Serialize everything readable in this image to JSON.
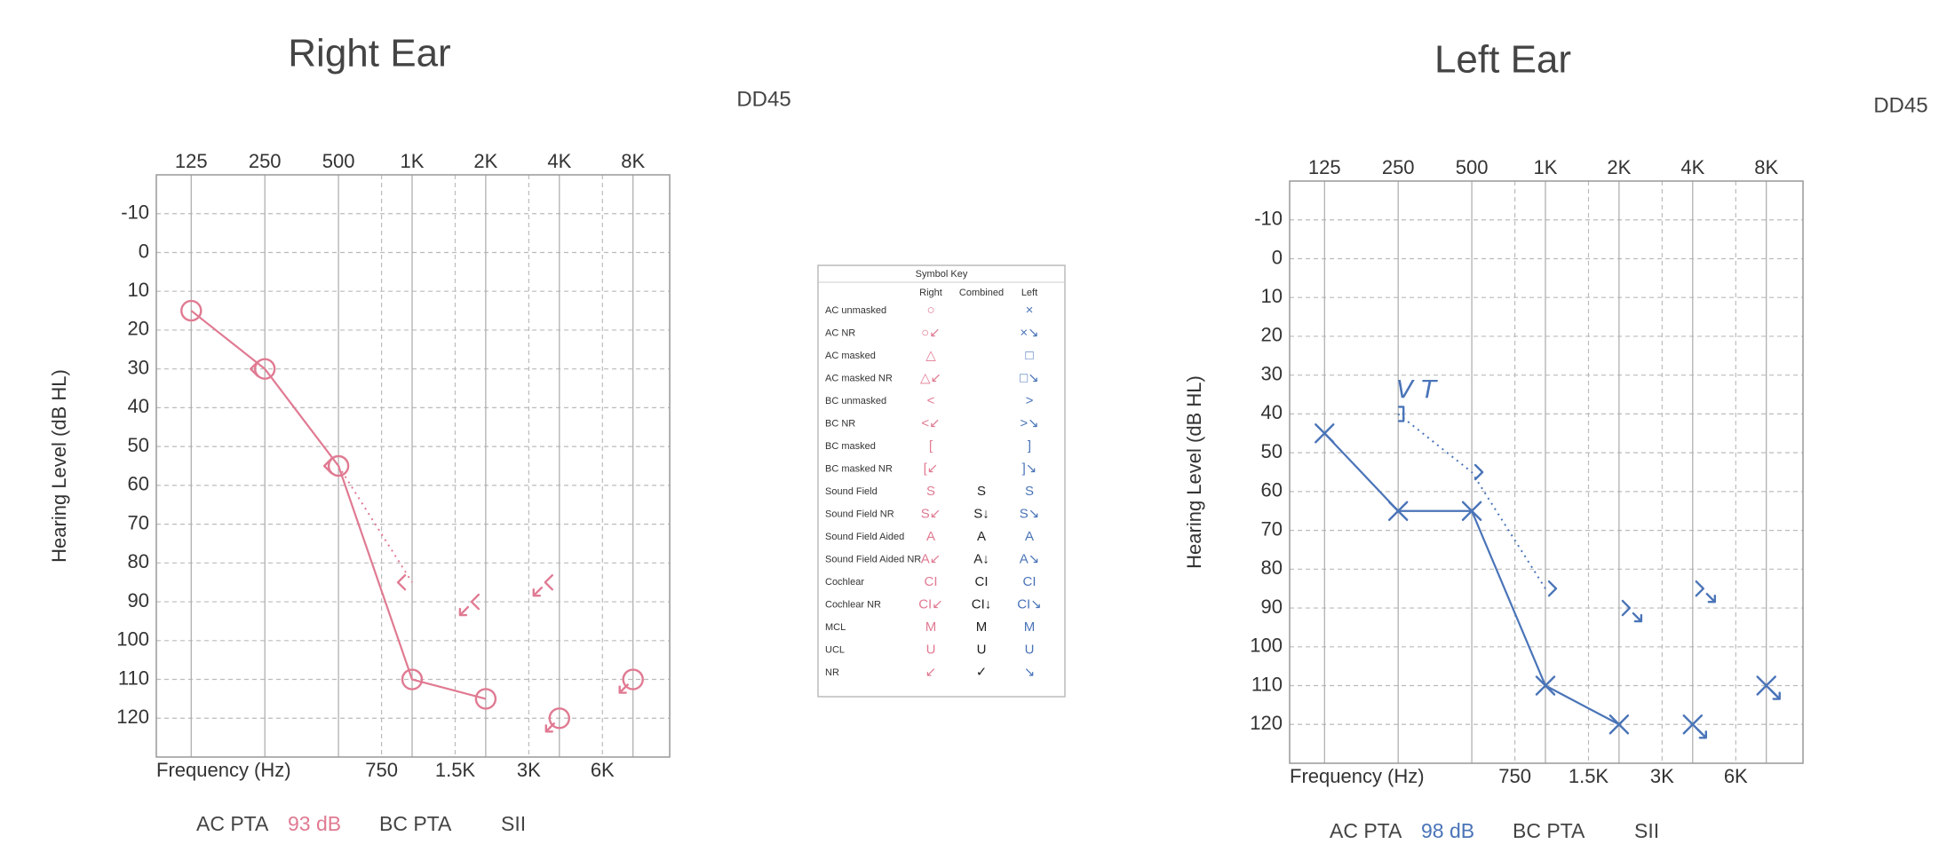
{
  "chart_data": [
    {
      "type": "audiogram",
      "title": "Right Ear",
      "transducer": "DD45",
      "xlabel": "Frequency (Hz)",
      "ylabel": "Hearing Level (dB HL)",
      "xscale": "log",
      "xlim": [
        90,
        11300
      ],
      "xticks": [
        125,
        250,
        500,
        {
          "value": 1000,
          "label": "1K"
        },
        {
          "value": 2000,
          "label": "2K"
        },
        {
          "value": 4000,
          "label": "4K"
        },
        {
          "value": 8000,
          "label": "8K"
        }
      ],
      "x2ticks": [
        750,
        {
          "value": 1500,
          "label": "1.5K"
        },
        {
          "value": 3000,
          "label": "3K"
        },
        {
          "value": 6000,
          "label": "6K"
        }
      ],
      "ylim": [
        -20,
        130
      ],
      "y_reversed": true,
      "yticks": [
        -10,
        0,
        10,
        20,
        30,
        40,
        50,
        60,
        70,
        80,
        90,
        100,
        110,
        120
      ],
      "grid": true,
      "series": [
        {
          "marker": "circle",
          "line": "solid",
          "color": "#e07a92",
          "x": [
            125,
            250,
            500,
            1000,
            2000
          ],
          "values": [
            15,
            30,
            55,
            110,
            115
          ]
        },
        {
          "marker": "circle-nr",
          "color": "#e07a92",
          "x": [
            4000,
            8000
          ],
          "values": [
            120,
            110
          ]
        },
        {
          "marker": "<",
          "color": "#e07a92",
          "x": [
            250
          ],
          "values": [
            30
          ]
        },
        {
          "marker": "<",
          "line": "dotted",
          "color": "#e07a92",
          "x": [
            500,
            1000
          ],
          "values": [
            55,
            85
          ]
        },
        {
          "marker": "<-nr",
          "color": "#e07a92",
          "x": [
            2000,
            4000
          ],
          "values": [
            90,
            85
          ]
        }
      ],
      "annotations": [],
      "footer": [
        {
          "text": "AC PTA"
        },
        {
          "text": "93 dB",
          "color": "#e07a92"
        },
        {
          "text": "BC PTA"
        },
        {
          "text": "SII"
        }
      ]
    },
    {
      "type": "audiogram",
      "title": "Left Ear",
      "transducer": "DD45",
      "xlabel": "Frequency (Hz)",
      "ylabel": "Hearing Level (dB HL)",
      "xscale": "log",
      "xlim": [
        90,
        11300
      ],
      "xticks": [
        125,
        250,
        500,
        {
          "value": 1000,
          "label": "1K"
        },
        {
          "value": 2000,
          "label": "2K"
        },
        {
          "value": 4000,
          "label": "4K"
        },
        {
          "value": 8000,
          "label": "8K"
        }
      ],
      "x2ticks": [
        750,
        {
          "value": 1500,
          "label": "1.5K"
        },
        {
          "value": 3000,
          "label": "3K"
        },
        {
          "value": 6000,
          "label": "6K"
        }
      ],
      "ylim": [
        -20,
        130
      ],
      "y_reversed": true,
      "yticks": [
        -10,
        0,
        10,
        20,
        30,
        40,
        50,
        60,
        70,
        80,
        90,
        100,
        110,
        120
      ],
      "grid": true,
      "series": [
        {
          "marker": "x",
          "line": "solid",
          "color": "#4a74b8",
          "x": [
            125,
            250,
            500,
            1000,
            2000
          ],
          "values": [
            45,
            65,
            65,
            110,
            120
          ]
        },
        {
          "marker": "x-nr",
          "color": "#4a74b8",
          "x": [
            4000,
            8000
          ],
          "values": [
            120,
            110
          ]
        },
        {
          "markers": [
            "]",
            ">",
            ">"
          ],
          "line": "dotted",
          "color": "#4a74b8",
          "x": [
            250,
            500,
            1000
          ],
          "values": [
            40,
            55,
            85
          ]
        },
        {
          "marker": ">-nr",
          "color": "#4a74b8",
          "x": [
            2000,
            4000
          ],
          "values": [
            90,
            85
          ]
        }
      ],
      "annotations": [
        {
          "text": "V T",
          "color": "#4a74b8"
        }
      ],
      "footer": [
        {
          "text": "AC PTA"
        },
        {
          "text": "98 dB",
          "color": "#4a74b8"
        },
        {
          "text": "BC PTA"
        },
        {
          "text": "SII"
        }
      ]
    }
  ],
  "symbol_key": {
    "title": "Symbol Key",
    "columns": [
      "Right",
      "Combined",
      "Left"
    ],
    "rows": [
      {
        "label": "AC unmasked",
        "right": "○",
        "left": "×"
      },
      {
        "label": "AC NR",
        "right": "○↙",
        "left": "×↘"
      },
      {
        "label": "AC masked",
        "right": "△",
        "left": "□"
      },
      {
        "label": "AC masked NR",
        "right": "△↙",
        "left": "□↘"
      },
      {
        "label": "BC unmasked",
        "right": "<",
        "left": ">"
      },
      {
        "label": "BC NR",
        "right": "<↙",
        "left": ">↘"
      },
      {
        "label": "BC masked",
        "right": "[",
        "left": "]"
      },
      {
        "label": "BC masked NR",
        "right": "[↙",
        "left": "]↘"
      },
      {
        "label": "Sound Field",
        "right": "S",
        "combined": "S",
        "left": "S"
      },
      {
        "label": "Sound Field NR",
        "right": "S↙",
        "combined": "S↓",
        "left": "S↘"
      },
      {
        "label": "Sound Field Aided",
        "right": "A",
        "combined": "A",
        "left": "A"
      },
      {
        "label": "Sound Field Aided NR",
        "right": "A↙",
        "combined": "A↓",
        "left": "A↘"
      },
      {
        "label": "Cochlear",
        "right": "CI",
        "combined": "CI",
        "left": "CI"
      },
      {
        "label": "Cochlear NR",
        "right": "CI↙",
        "combined": "CI↓",
        "left": "CI↘"
      },
      {
        "label": "MCL",
        "right": "M",
        "combined": "M",
        "left": "M"
      },
      {
        "label": "UCL",
        "right": "U",
        "combined": "U",
        "left": "U"
      },
      {
        "label": "NR",
        "right": "↙",
        "combined": "✓",
        "left": "↘"
      }
    ]
  }
}
